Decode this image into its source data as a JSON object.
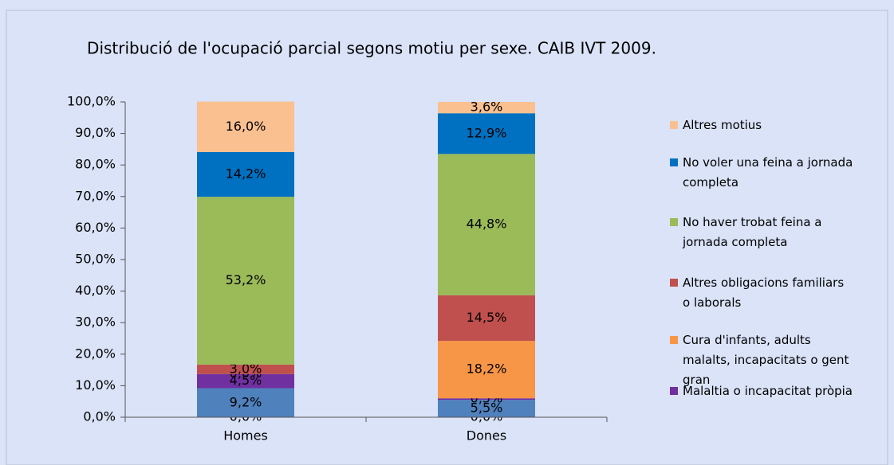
{
  "chart_data": {
    "type": "stacked_bar",
    "title": "Distribució de l'ocupació parcial segons motiu per sexe. CAIB IVT 2009.",
    "categories": [
      "Homes",
      "Dones"
    ],
    "series": [
      {
        "color": "#1f497d",
        "values": [
          0.0,
          0.0
        ],
        "value_labels": [
          "0,0%",
          "0,0%"
        ]
      },
      {
        "color": "#4f81bd",
        "values": [
          9.2,
          5.5
        ],
        "value_labels": [
          "9,2%",
          "5,5%"
        ]
      },
      {
        "name": "Malaltia o incapacitat pròpia",
        "color": "#7030a0",
        "values": [
          4.5,
          0.5
        ],
        "value_labels": [
          "4,5%",
          "0,5%"
        ]
      },
      {
        "name": "Cura d'infants, adults malalts, incapacitats o gent gran",
        "color": "#f79646",
        "values": [
          0.0,
          18.2
        ],
        "value_labels": [
          "0,0%",
          "18,2%"
        ]
      },
      {
        "name": "Altres obligacions familiars o laborals",
        "color": "#c0504d",
        "values": [
          3.0,
          14.5
        ],
        "value_labels": [
          "3,0%",
          "14,5%"
        ]
      },
      {
        "name": "No haver trobat feina a jornada completa",
        "color": "#9bbb59",
        "values": [
          53.2,
          44.8
        ],
        "value_labels": [
          "53,2%",
          "44,8%"
        ]
      },
      {
        "name": "No voler una feina a jornada completa",
        "color": "#0070c0",
        "values": [
          14.2,
          12.9
        ],
        "value_labels": [
          "14,2%",
          "12,9%"
        ]
      },
      {
        "name": "Altres motius",
        "color": "#fac090",
        "values": [
          16.0,
          3.6
        ],
        "value_labels": [
          "16,0%",
          "3,6%"
        ]
      }
    ],
    "ylim": [
      0,
      100
    ],
    "yticks": [
      {
        "value": 0,
        "label": "0,0%"
      },
      {
        "value": 10,
        "label": "10,0%"
      },
      {
        "value": 20,
        "label": "20,0%"
      },
      {
        "value": 30,
        "label": "30,0%"
      },
      {
        "value": 40,
        "label": "40,0%"
      },
      {
        "value": 50,
        "label": "50,0%"
      },
      {
        "value": 60,
        "label": "60,0%"
      },
      {
        "value": 70,
        "label": "70,0%"
      },
      {
        "value": 80,
        "label": "80,0%"
      },
      {
        "value": 90,
        "label": "90,0%"
      },
      {
        "value": 100,
        "label": "100,0%"
      }
    ],
    "grid": false
  }
}
